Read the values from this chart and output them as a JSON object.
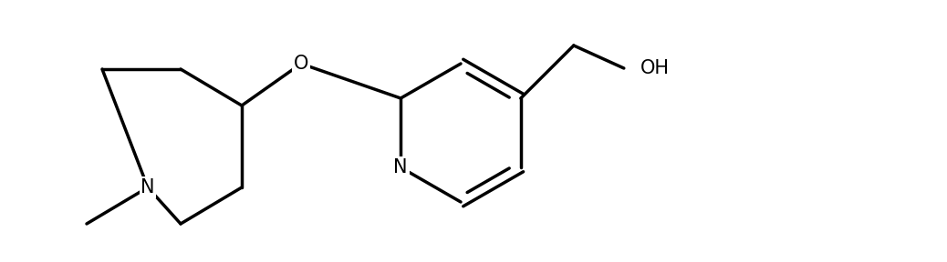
{
  "background_color": "#ffffff",
  "line_color": "#000000",
  "line_width": 2.5,
  "font_size": 15,
  "figsize": [
    10.38,
    2.88
  ],
  "dpi": 100,
  "xlim": [
    0,
    10.38
  ],
  "ylim": [
    0,
    2.88
  ]
}
